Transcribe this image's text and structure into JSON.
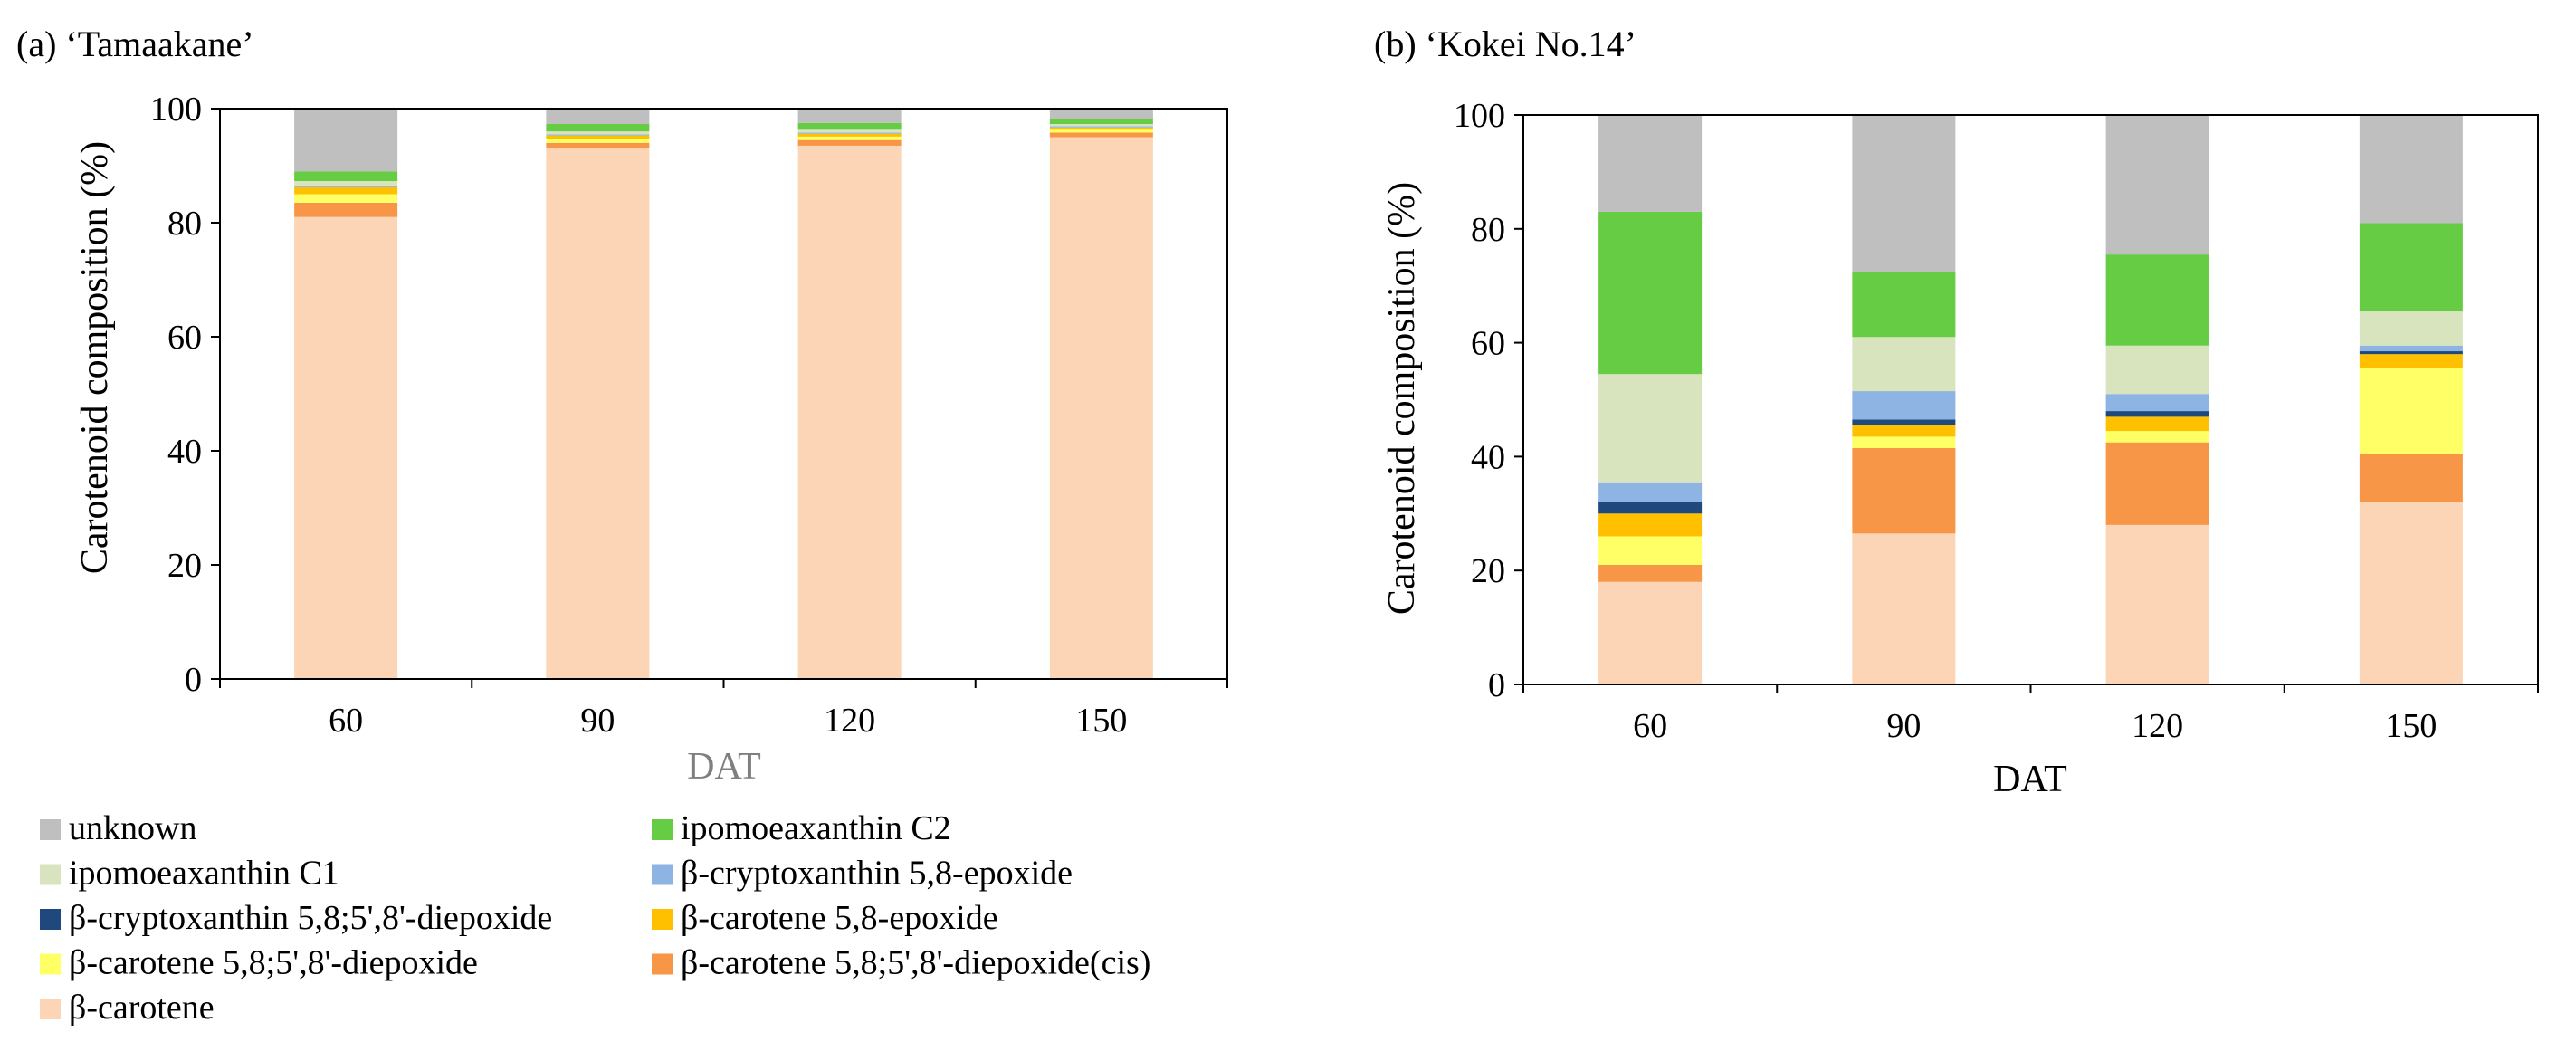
{
  "colors": {
    "beta_carotene": "#FBD5B5",
    "bc_diepoxide_cis": "#F79646",
    "bc_diepoxide": "#FFFF66",
    "bc_epoxide": "#FFC000",
    "bcx_diepoxide": "#1F497D",
    "bcx_epoxide": "#8DB4E2",
    "ipo_c1": "#D7E4BD",
    "ipo_c2": "#66CC44",
    "unknown": "#BFBFBF"
  },
  "legend": [
    {
      "key": "unknown",
      "label": "unknown",
      "color": "#BFBFBF"
    },
    {
      "key": "ipo_c2",
      "label": "ipomoeaxanthin C2",
      "color": "#66CC44"
    },
    {
      "key": "ipo_c1",
      "label": "ipomoeaxanthin C1",
      "color": "#D7E4BD"
    },
    {
      "key": "bcx_epoxide",
      "label": "β-cryptoxanthin 5,8-epoxide",
      "color": "#8DB4E2"
    },
    {
      "key": "bcx_diepoxide",
      "label": "β-cryptoxanthin 5,8;5',8'-diepoxide",
      "color": "#1F497D"
    },
    {
      "key": "bc_epoxide",
      "label": "β-carotene 5,8-epoxide",
      "color": "#FFC000"
    },
    {
      "key": "bc_diepoxide",
      "label": "β-carotene 5,8;5',8'-diepoxide",
      "color": "#FFFF66"
    },
    {
      "key": "bc_diepoxide_cis",
      "label": "β-carotene 5,8;5',8'-diepoxide(cis)",
      "color": "#F79646"
    },
    {
      "key": "beta_carotene",
      "label": "β-carotene",
      "color": "#FBD5B5"
    }
  ],
  "chart_data": [
    {
      "type": "bar",
      "stacked": true,
      "title": "(a) ‘Tamaakane’",
      "xlabel": "DAT",
      "ylabel": "Carotenoid composition (%)",
      "categories": [
        "60",
        "90",
        "120",
        "150"
      ],
      "ylim": [
        0,
        100
      ],
      "yticks": [
        "0",
        "20",
        "40",
        "60",
        "80",
        "100"
      ],
      "series": [
        {
          "key": "beta_carotene",
          "name": "β-carotene",
          "values": [
            81,
            93,
            93.5,
            95
          ]
        },
        {
          "key": "bc_diepoxide_cis",
          "name": "β-carotene 5,8;5',8'-diepoxide(cis)",
          "values": [
            2.5,
            1,
            1,
            0.8
          ]
        },
        {
          "key": "bc_diepoxide",
          "name": "β-carotene 5,8;5',8'-diepoxide",
          "values": [
            1.5,
            0.7,
            0.6,
            0.5
          ]
        },
        {
          "key": "bc_epoxide",
          "name": "β-carotene 5,8-epoxide",
          "values": [
            1.2,
            0.6,
            0.5,
            0.4
          ]
        },
        {
          "key": "bcx_diepoxide",
          "name": "β-cryptoxanthin 5,8;5',8'-diepoxide",
          "values": [
            0,
            0,
            0,
            0
          ]
        },
        {
          "key": "bcx_epoxide",
          "name": "β-cryptoxanthin 5,8-epoxide",
          "values": [
            0.3,
            0.2,
            0.2,
            0.2
          ]
        },
        {
          "key": "ipo_c1",
          "name": "ipomoeaxanthin C1",
          "values": [
            0.8,
            0.5,
            0.5,
            0.4
          ]
        },
        {
          "key": "ipo_c2",
          "name": "ipomoeaxanthin C2",
          "values": [
            1.7,
            1.3,
            1.2,
            0.9
          ]
        },
        {
          "key": "unknown",
          "name": "unknown",
          "values": [
            11,
            2.7,
            2.5,
            1.8
          ]
        }
      ]
    },
    {
      "type": "bar",
      "stacked": true,
      "title": "(b) ‘Kokei No.14’",
      "xlabel": "DAT",
      "ylabel": "Carotenoid composition (%)",
      "categories": [
        "60",
        "90",
        "120",
        "150"
      ],
      "ylim": [
        0,
        100
      ],
      "yticks": [
        "0",
        "20",
        "40",
        "60",
        "80",
        "100"
      ],
      "series": [
        {
          "key": "beta_carotene",
          "name": "β-carotene",
          "values": [
            18,
            26.5,
            28,
            32
          ]
        },
        {
          "key": "bc_diepoxide_cis",
          "name": "β-carotene 5,8;5',8'-diepoxide(cis)",
          "values": [
            3,
            15,
            14.5,
            8.5
          ]
        },
        {
          "key": "bc_diepoxide",
          "name": "β-carotene 5,8;5',8'-diepoxide",
          "values": [
            5,
            2,
            2,
            15
          ]
        },
        {
          "key": "bc_epoxide",
          "name": "β-carotene 5,8-epoxide",
          "values": [
            4,
            2,
            2.5,
            2.5
          ]
        },
        {
          "key": "bcx_diepoxide",
          "name": "β-cryptoxanthin 5,8;5',8'-diepoxide",
          "values": [
            2,
            1,
            1,
            0.5
          ]
        },
        {
          "key": "bcx_epoxide",
          "name": "β-cryptoxanthin 5,8-epoxide",
          "values": [
            3.5,
            5,
            3,
            1
          ]
        },
        {
          "key": "ipo_c1",
          "name": "ipomoeaxanthin C1",
          "values": [
            19,
            9.5,
            8.5,
            6
          ]
        },
        {
          "key": "ipo_c2",
          "name": "ipomoeaxanthin C2",
          "values": [
            28.5,
            11.5,
            16,
            15.5
          ]
        },
        {
          "key": "unknown",
          "name": "unknown",
          "values": [
            17,
            27.5,
            24.5,
            19
          ]
        }
      ]
    }
  ]
}
